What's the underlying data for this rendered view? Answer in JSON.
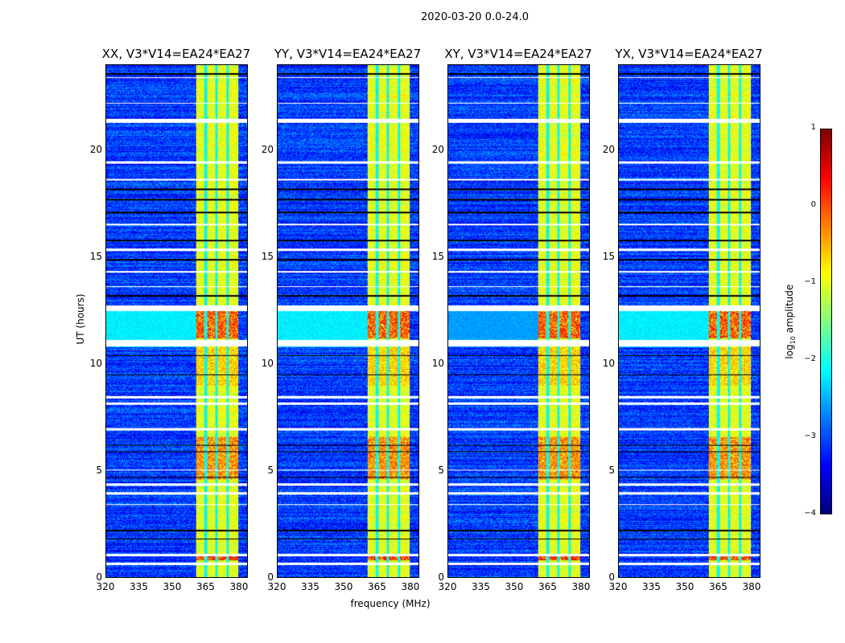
{
  "chart_data": {
    "type": "heatmap",
    "title": "2020-03-20 0.0-24.0",
    "xlabel": "frequency (MHz)",
    "ylabel": "UT (hours)",
    "xlim": [
      320,
      384
    ],
    "ylim": [
      0,
      24
    ],
    "xticks": [
      "320",
      "335",
      "350",
      "365",
      "380"
    ],
    "xtick_values": [
      320,
      335,
      350,
      365,
      380
    ],
    "yticks": [
      "0",
      "5",
      "10",
      "15",
      "20"
    ],
    "ytick_values": [
      0,
      5,
      10,
      15,
      20
    ],
    "panels": [
      {
        "title": "XX, V3*V14=EA24*EA27",
        "seed": 1
      },
      {
        "title": "YY, V3*V14=EA24*EA27",
        "seed": 2
      },
      {
        "title": "XY, V3*V14=EA24*EA27",
        "seed": 3
      },
      {
        "title": "YX, V3*V14=EA24*EA27",
        "seed": 4
      }
    ],
    "colorbar": {
      "label": "log10 amplitude",
      "label_main": "log",
      "label_sub": "10",
      "label_rest": " amplitude",
      "range": [
        -4,
        1
      ],
      "ticks": [
        "1",
        "0",
        "−1",
        "−2",
        "−3",
        "−4"
      ],
      "tick_values": [
        1,
        0,
        -1,
        -2,
        -3,
        -4
      ],
      "colormap": "jet"
    },
    "background_level": -3.1,
    "rfi_band_mhz": [
      360.5,
      380
    ],
    "rfi_band_level": -1.0,
    "rfi_gaps_mhz": [
      365,
      370,
      375
    ],
    "strong_intervals_hours": [
      [
        11.2,
        12.5,
        0.1
      ],
      [
        4.6,
        6.6,
        -0.2
      ],
      [
        9.0,
        10.8,
        -0.6
      ],
      [
        0.8,
        1.0,
        0.3
      ]
    ],
    "elevated_lowfreq_hours": [
      [
        10.8,
        12.5,
        -2.2
      ]
    ],
    "flagged_intervals_hours": [
      [
        21.3,
        21.5
      ],
      [
        12.5,
        12.75
      ],
      [
        10.85,
        11.15
      ],
      [
        8.4,
        8.5
      ],
      [
        8.1,
        8.2
      ],
      [
        6.9,
        7.0
      ],
      [
        5.0,
        5.05
      ],
      [
        4.3,
        4.4
      ],
      [
        3.9,
        4.0
      ],
      [
        3.4,
        3.45
      ],
      [
        1.0,
        1.1
      ],
      [
        0.6,
        0.7
      ],
      [
        23.4,
        23.45
      ],
      [
        22.2,
        22.25
      ],
      [
        19.4,
        19.5
      ],
      [
        18.6,
        18.7
      ],
      [
        16.5,
        16.6
      ],
      [
        15.3,
        15.4
      ],
      [
        14.3,
        14.35
      ],
      [
        13.6,
        13.65
      ]
    ],
    "dark_lines_hours": [
      23.6,
      18.2,
      17.7,
      17.1,
      15.8,
      14.9,
      13.2,
      10.4,
      9.5,
      6.2,
      5.9,
      4.7,
      2.2,
      1.8
    ]
  }
}
